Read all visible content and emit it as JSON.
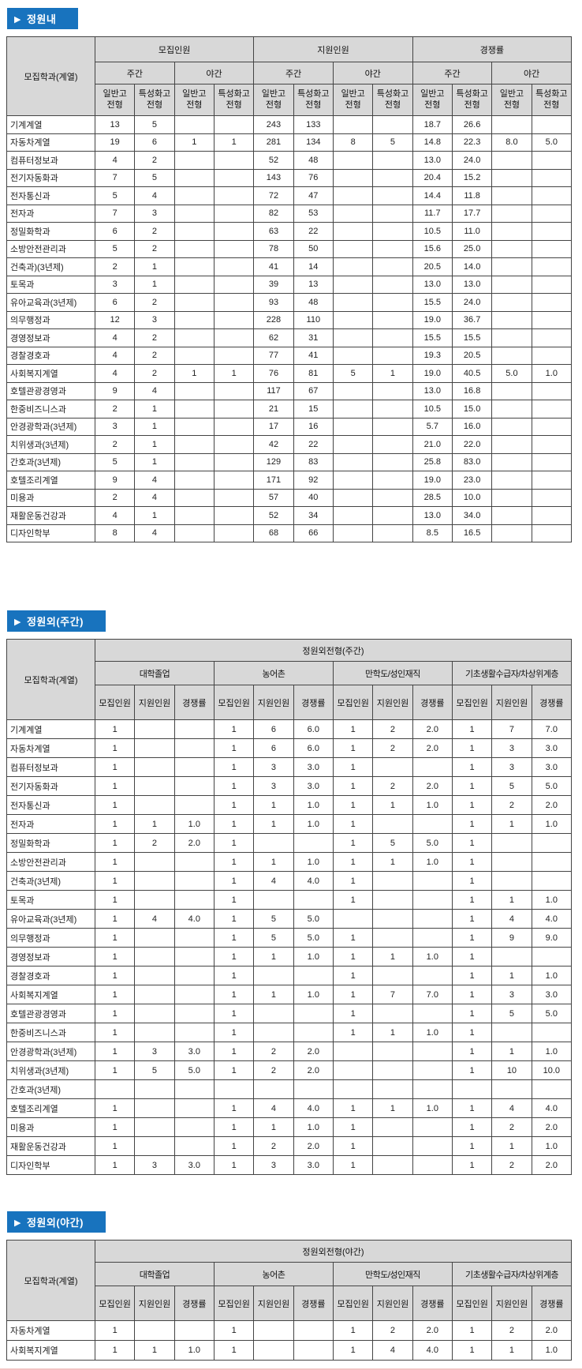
{
  "labels": {
    "dept_col": "모집학과(계열)",
    "arrow": "▶"
  },
  "section1": {
    "title": "정원내",
    "header": {
      "groups": [
        "모집인원",
        "지원인원",
        "경쟁률"
      ],
      "subgroups": [
        "주간",
        "야간"
      ],
      "cols": [
        "일반고\n전형",
        "특성화고\n전형"
      ]
    },
    "rows": [
      {
        "dept": "기계계열",
        "values": [
          "13",
          "5",
          "",
          "",
          "243",
          "133",
          "",
          "",
          "18.7",
          "26.6",
          "",
          ""
        ]
      },
      {
        "dept": "자동차계열",
        "values": [
          "19",
          "6",
          "1",
          "1",
          "281",
          "134",
          "8",
          "5",
          "14.8",
          "22.3",
          "8.0",
          "5.0"
        ]
      },
      {
        "dept": "컴퓨터정보과",
        "values": [
          "4",
          "2",
          "",
          "",
          "52",
          "48",
          "",
          "",
          "13.0",
          "24.0",
          "",
          ""
        ]
      },
      {
        "dept": "전기자동화과",
        "values": [
          "7",
          "5",
          "",
          "",
          "143",
          "76",
          "",
          "",
          "20.4",
          "15.2",
          "",
          ""
        ]
      },
      {
        "dept": "전자통신과",
        "values": [
          "5",
          "4",
          "",
          "",
          "72",
          "47",
          "",
          "",
          "14.4",
          "11.8",
          "",
          ""
        ]
      },
      {
        "dept": "전자과",
        "values": [
          "7",
          "3",
          "",
          "",
          "82",
          "53",
          "",
          "",
          "11.7",
          "17.7",
          "",
          ""
        ]
      },
      {
        "dept": "정밀화학과",
        "values": [
          "6",
          "2",
          "",
          "",
          "63",
          "22",
          "",
          "",
          "10.5",
          "11.0",
          "",
          ""
        ]
      },
      {
        "dept": "소방안전관리과",
        "values": [
          "5",
          "2",
          "",
          "",
          "78",
          "50",
          "",
          "",
          "15.6",
          "25.0",
          "",
          ""
        ]
      },
      {
        "dept": "건축과)(3년제)",
        "values": [
          "2",
          "1",
          "",
          "",
          "41",
          "14",
          "",
          "",
          "20.5",
          "14.0",
          "",
          ""
        ]
      },
      {
        "dept": "토목과",
        "values": [
          "3",
          "1",
          "",
          "",
          "39",
          "13",
          "",
          "",
          "13.0",
          "13.0",
          "",
          ""
        ]
      },
      {
        "dept": "유아교육과(3년제)",
        "values": [
          "6",
          "2",
          "",
          "",
          "93",
          "48",
          "",
          "",
          "15.5",
          "24.0",
          "",
          ""
        ]
      },
      {
        "dept": "의무행정과",
        "values": [
          "12",
          "3",
          "",
          "",
          "228",
          "110",
          "",
          "",
          "19.0",
          "36.7",
          "",
          ""
        ]
      },
      {
        "dept": "경영정보과",
        "values": [
          "4",
          "2",
          "",
          "",
          "62",
          "31",
          "",
          "",
          "15.5",
          "15.5",
          "",
          ""
        ]
      },
      {
        "dept": "경찰경호과",
        "values": [
          "4",
          "2",
          "",
          "",
          "77",
          "41",
          "",
          "",
          "19.3",
          "20.5",
          "",
          ""
        ]
      },
      {
        "dept": "사회복지계열",
        "values": [
          "4",
          "2",
          "1",
          "1",
          "76",
          "81",
          "5",
          "1",
          "19.0",
          "40.5",
          "5.0",
          "1.0"
        ]
      },
      {
        "dept": "호텔관광경영과",
        "values": [
          "9",
          "4",
          "",
          "",
          "117",
          "67",
          "",
          "",
          "13.0",
          "16.8",
          "",
          ""
        ]
      },
      {
        "dept": "한중비즈니스과",
        "values": [
          "2",
          "1",
          "",
          "",
          "21",
          "15",
          "",
          "",
          "10.5",
          "15.0",
          "",
          ""
        ]
      },
      {
        "dept": "안경광학과(3년제)",
        "values": [
          "3",
          "1",
          "",
          "",
          "17",
          "16",
          "",
          "",
          "5.7",
          "16.0",
          "",
          ""
        ]
      },
      {
        "dept": "치위생과(3년제)",
        "values": [
          "2",
          "1",
          "",
          "",
          "42",
          "22",
          "",
          "",
          "21.0",
          "22.0",
          "",
          ""
        ]
      },
      {
        "dept": "간호과(3년제)",
        "values": [
          "5",
          "1",
          "",
          "",
          "129",
          "83",
          "",
          "",
          "25.8",
          "83.0",
          "",
          ""
        ]
      },
      {
        "dept": "호텔조리계열",
        "values": [
          "9",
          "4",
          "",
          "",
          "171",
          "92",
          "",
          "",
          "19.0",
          "23.0",
          "",
          ""
        ]
      },
      {
        "dept": "미용과",
        "values": [
          "2",
          "4",
          "",
          "",
          "57",
          "40",
          "",
          "",
          "28.5",
          "10.0",
          "",
          ""
        ]
      },
      {
        "dept": "재활운동건강과",
        "values": [
          "4",
          "1",
          "",
          "",
          "52",
          "34",
          "",
          "",
          "13.0",
          "34.0",
          "",
          ""
        ]
      },
      {
        "dept": "디자인학부",
        "values": [
          "8",
          "4",
          "",
          "",
          "68",
          "66",
          "",
          "",
          "8.5",
          "16.5",
          "",
          ""
        ]
      }
    ]
  },
  "section2": {
    "title": "정원외(주간)",
    "header": {
      "top": "정원외전형(주간)",
      "groups": [
        "대학졸업",
        "농어촌",
        "만학도/성인재직",
        "기초생활수급자/차상위계층"
      ],
      "cols": [
        "모집인원",
        "지원인원",
        "경쟁률"
      ]
    },
    "rows": [
      {
        "dept": "기계계열",
        "values": [
          "1",
          "",
          "",
          "1",
          "6",
          "6.0",
          "1",
          "2",
          "2.0",
          "1",
          "7",
          "7.0"
        ]
      },
      {
        "dept": "자동차계열",
        "values": [
          "1",
          "",
          "",
          "1",
          "6",
          "6.0",
          "1",
          "2",
          "2.0",
          "1",
          "3",
          "3.0"
        ]
      },
      {
        "dept": "컴퓨터정보과",
        "values": [
          "1",
          "",
          "",
          "1",
          "3",
          "3.0",
          "1",
          "",
          "",
          "1",
          "3",
          "3.0"
        ]
      },
      {
        "dept": "전기자동화과",
        "values": [
          "1",
          "",
          "",
          "1",
          "3",
          "3.0",
          "1",
          "2",
          "2.0",
          "1",
          "5",
          "5.0"
        ]
      },
      {
        "dept": "전자통신과",
        "values": [
          "1",
          "",
          "",
          "1",
          "1",
          "1.0",
          "1",
          "1",
          "1.0",
          "1",
          "2",
          "2.0"
        ]
      },
      {
        "dept": "전자과",
        "values": [
          "1",
          "1",
          "1.0",
          "1",
          "1",
          "1.0",
          "1",
          "",
          "",
          "1",
          "1",
          "1.0"
        ]
      },
      {
        "dept": "정밀화학과",
        "values": [
          "1",
          "2",
          "2.0",
          "1",
          "",
          "",
          "1",
          "5",
          "5.0",
          "1",
          "",
          ""
        ]
      },
      {
        "dept": "소방안전관리과",
        "values": [
          "1",
          "",
          "",
          "1",
          "1",
          "1.0",
          "1",
          "1",
          "1.0",
          "1",
          "",
          ""
        ]
      },
      {
        "dept": "건축과(3년제)",
        "values": [
          "1",
          "",
          "",
          "1",
          "4",
          "4.0",
          "1",
          "",
          "",
          "1",
          "",
          ""
        ]
      },
      {
        "dept": "토목과",
        "values": [
          "1",
          "",
          "",
          "1",
          "",
          "",
          "1",
          "",
          "",
          "1",
          "1",
          "1.0"
        ]
      },
      {
        "dept": "유아교육과(3년제)",
        "values": [
          "1",
          "4",
          "4.0",
          "1",
          "5",
          "5.0",
          "",
          "",
          "",
          "1",
          "4",
          "4.0"
        ]
      },
      {
        "dept": "의무행정과",
        "values": [
          "1",
          "",
          "",
          "1",
          "5",
          "5.0",
          "1",
          "",
          "",
          "1",
          "9",
          "9.0"
        ]
      },
      {
        "dept": "경영정보과",
        "values": [
          "1",
          "",
          "",
          "1",
          "1",
          "1.0",
          "1",
          "1",
          "1.0",
          "1",
          "",
          ""
        ]
      },
      {
        "dept": "경찰경호과",
        "values": [
          "1",
          "",
          "",
          "1",
          "",
          "",
          "1",
          "",
          "",
          "1",
          "1",
          "1.0"
        ]
      },
      {
        "dept": "사회복지계열",
        "values": [
          "1",
          "",
          "",
          "1",
          "1",
          "1.0",
          "1",
          "7",
          "7.0",
          "1",
          "3",
          "3.0"
        ]
      },
      {
        "dept": "호텔관광경영과",
        "values": [
          "1",
          "",
          "",
          "1",
          "",
          "",
          "1",
          "",
          "",
          "1",
          "5",
          "5.0"
        ]
      },
      {
        "dept": "한중비즈니스과",
        "values": [
          "1",
          "",
          "",
          "1",
          "",
          "",
          "1",
          "1",
          "1.0",
          "1",
          "",
          ""
        ]
      },
      {
        "dept": "안경광학과(3년제)",
        "values": [
          "1",
          "3",
          "3.0",
          "1",
          "2",
          "2.0",
          "",
          "",
          "",
          "1",
          "1",
          "1.0"
        ]
      },
      {
        "dept": "치위생과(3년제)",
        "values": [
          "1",
          "5",
          "5.0",
          "1",
          "2",
          "2.0",
          "",
          "",
          "",
          "1",
          "10",
          "10.0"
        ]
      },
      {
        "dept": "간호과(3년제)",
        "values": [
          "",
          "",
          "",
          "",
          "",
          "",
          "",
          "",
          "",
          "",
          "",
          ""
        ]
      },
      {
        "dept": "호텔조리계열",
        "values": [
          "1",
          "",
          "",
          "1",
          "4",
          "4.0",
          "1",
          "1",
          "1.0",
          "1",
          "4",
          "4.0"
        ]
      },
      {
        "dept": "미용과",
        "values": [
          "1",
          "",
          "",
          "1",
          "1",
          "1.0",
          "1",
          "",
          "",
          "1",
          "2",
          "2.0"
        ]
      },
      {
        "dept": "재활운동건강과",
        "values": [
          "1",
          "",
          "",
          "1",
          "2",
          "2.0",
          "1",
          "",
          "",
          "1",
          "1",
          "1.0"
        ]
      },
      {
        "dept": "디자인학부",
        "values": [
          "1",
          "3",
          "3.0",
          "1",
          "3",
          "3.0",
          "1",
          "",
          "",
          "1",
          "2",
          "2.0"
        ]
      }
    ]
  },
  "section3": {
    "title": "정원외(야간)",
    "header": {
      "top": "정원외전형(야간)",
      "groups": [
        "대학졸업",
        "농어촌",
        "만학도/성인재직",
        "기초생활수급자/차상위계층"
      ],
      "cols": [
        "모집인원",
        "지원인원",
        "경쟁률"
      ]
    },
    "rows": [
      {
        "dept": "자동차계열",
        "values": [
          "1",
          "",
          "",
          "1",
          "",
          "",
          "1",
          "2",
          "2.0",
          "1",
          "2",
          "2.0"
        ]
      },
      {
        "dept": "사회복지계열",
        "values": [
          "1",
          "1",
          "1.0",
          "1",
          "",
          "",
          "1",
          "4",
          "4.0",
          "1",
          "1",
          "1.0"
        ]
      }
    ]
  },
  "colors": {
    "badge_blue": "#1873be",
    "header_gray": "#d8d8d8",
    "bottom_line_pink": "#f3c3c3"
  }
}
